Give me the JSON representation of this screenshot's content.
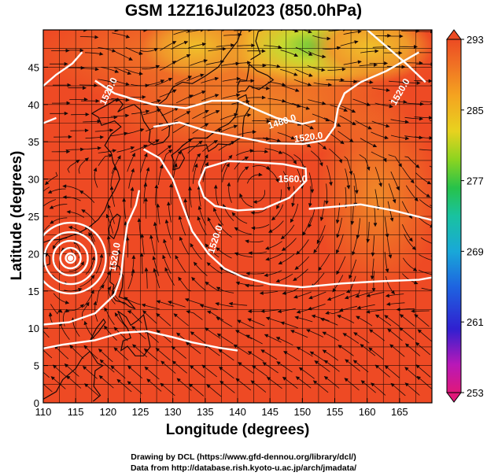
{
  "title": "GSM 12Z16Jul2023 (850.0hPa)",
  "axes": {
    "xlabel": "Longitude (degrees)",
    "ylabel": "Latitude  (degrees)",
    "xticks": [
      "110",
      "115",
      "120",
      "125",
      "130",
      "135",
      "140",
      "145",
      "150",
      "155",
      "160",
      "165"
    ],
    "yticks": [
      "0",
      "5",
      "10",
      "15",
      "20",
      "25",
      "30",
      "35",
      "40",
      "45"
    ],
    "xlim": [
      110,
      170
    ],
    "ylim": [
      0,
      50
    ]
  },
  "colorbar": {
    "ticks": [
      "293",
      "285",
      "277",
      "269",
      "261",
      "253"
    ],
    "range": [
      253,
      293
    ],
    "palette": [
      "#e0187a",
      "#8c1bc8",
      "#2a2ad6",
      "#1e88e0",
      "#19c2b0",
      "#27c24a",
      "#a6d81e",
      "#f1c81f",
      "#f08a22",
      "#ec4b23"
    ]
  },
  "contours": {
    "labels": [
      "1480.0",
      "1520.0",
      "1560.0",
      "1520.0",
      "1520.0",
      "1520.0",
      "1520.0"
    ],
    "line_color": "#ffffff"
  },
  "field_colors": {
    "warm": "#ee4a24",
    "hot": "#e83620",
    "mid": "#f07a2a",
    "cool": "#f0b42a",
    "cooler": "#c8d830",
    "coolest": "#6cc83a"
  },
  "credits": {
    "line1": "Drawing by DCL (https://www.gfd-dennou.org/library/dcl/)",
    "line2": "Data from http://database.rish.kyoto-u.ac.jp/arch/jmadata/"
  }
}
